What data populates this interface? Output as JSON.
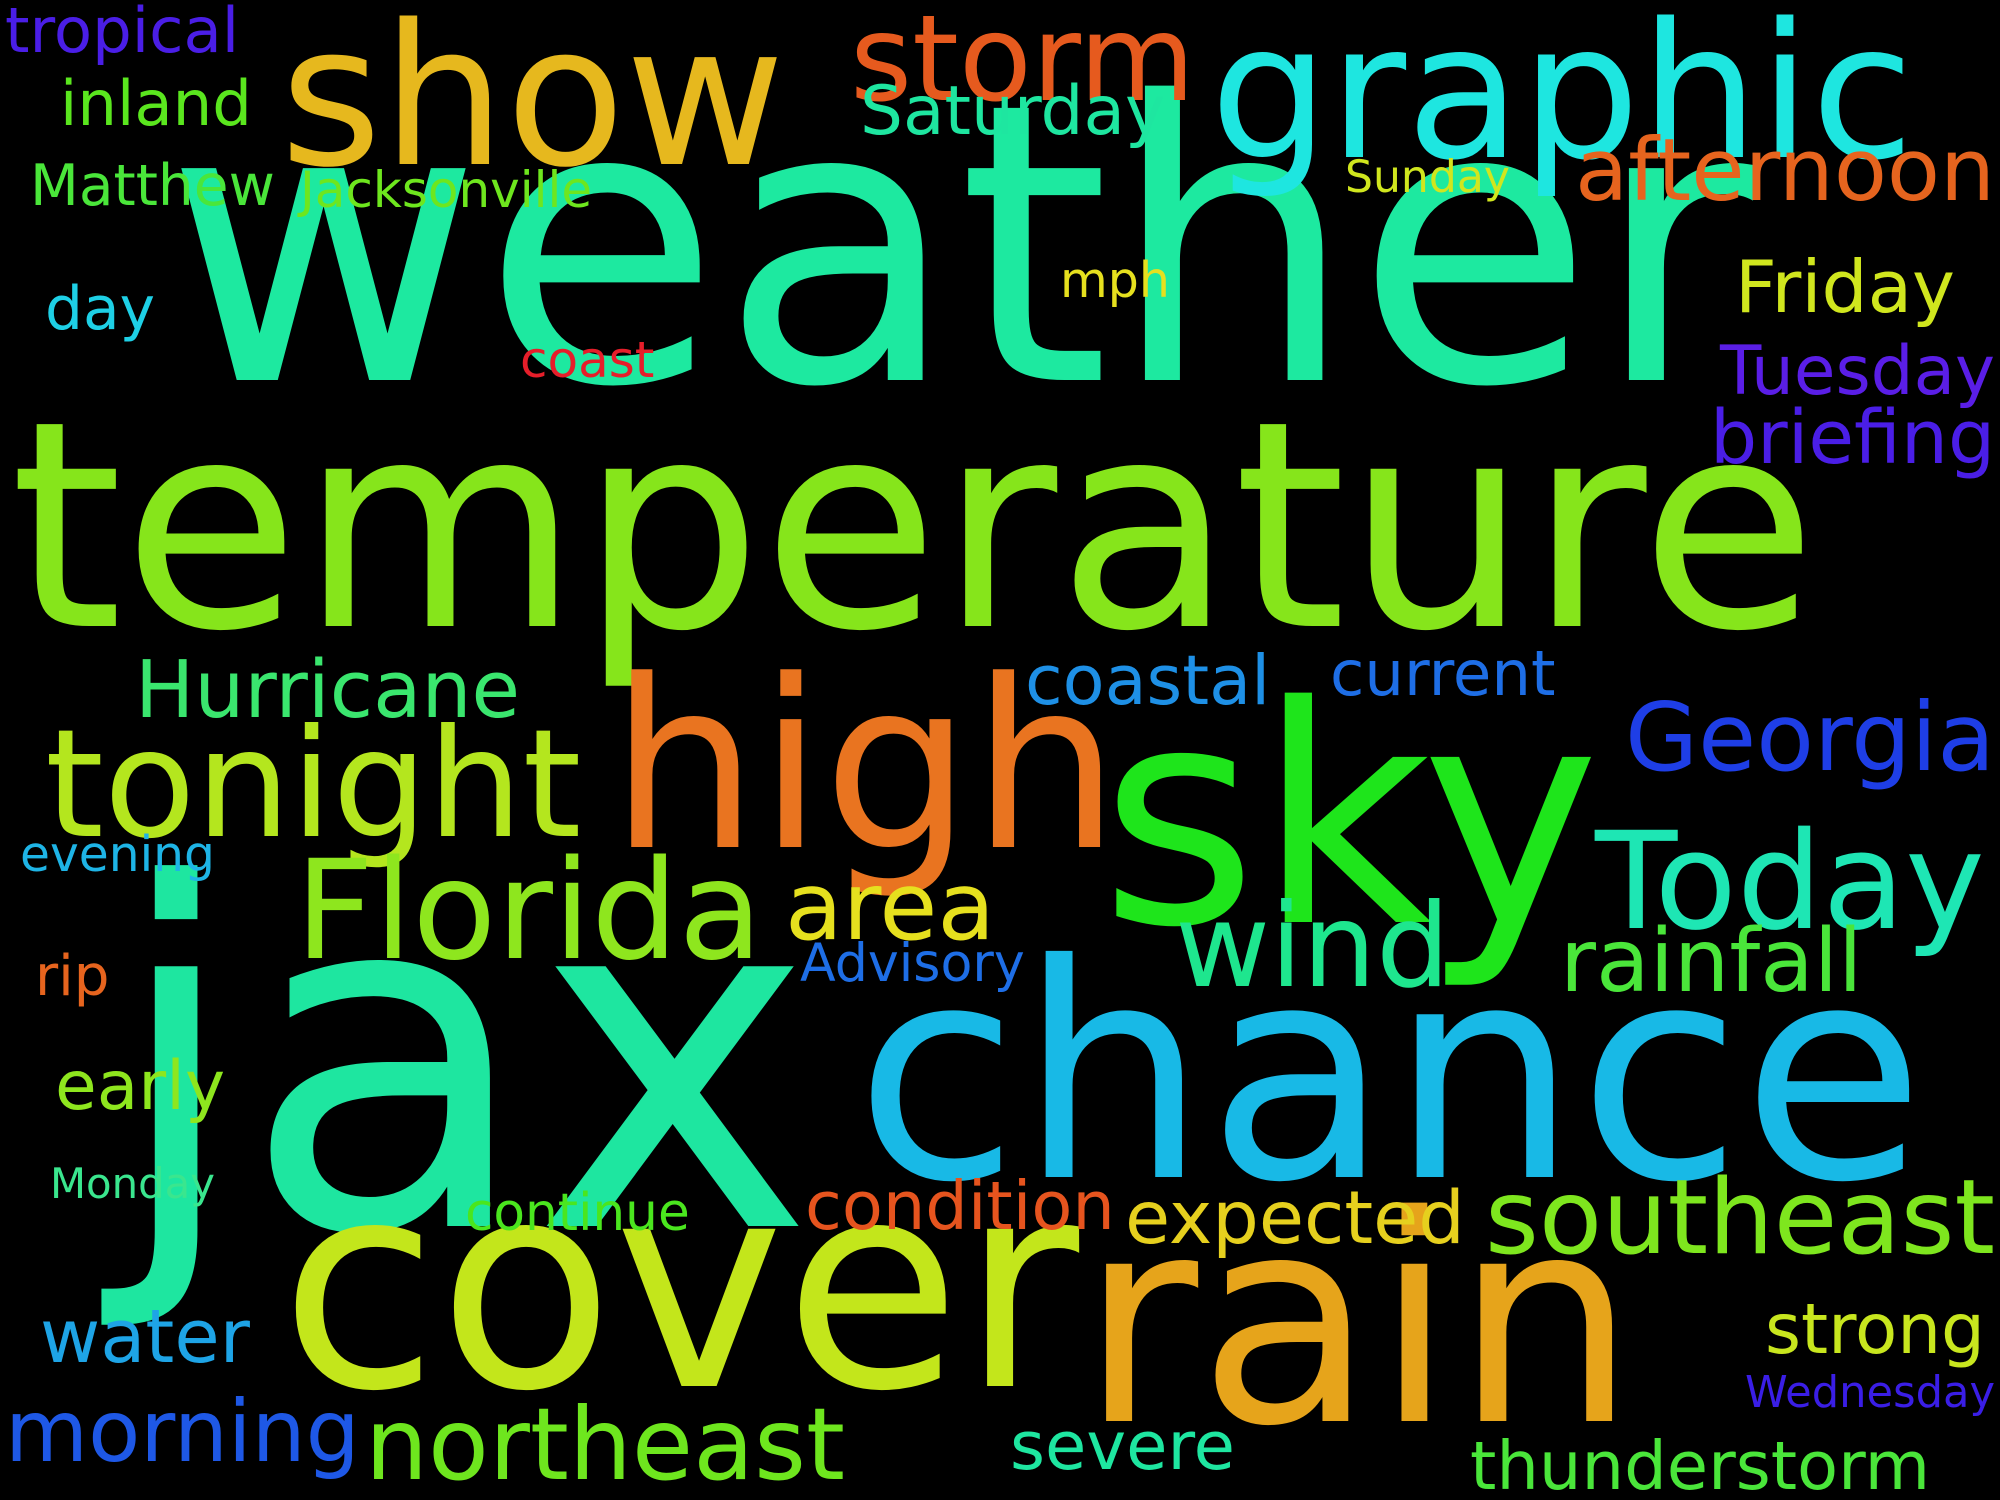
{
  "background": "#000000",
  "words": [
    {
      "text": "weather",
      "color": "#1de9a0"
    },
    {
      "text": "temperature",
      "color": "#86e51b"
    },
    {
      "text": "jax",
      "color": "#1ee6a0"
    },
    {
      "text": "sky",
      "color": "#1ee51b"
    },
    {
      "text": "high",
      "color": "#e97420"
    },
    {
      "text": "chance",
      "color": "#18b9e6"
    },
    {
      "text": "cover",
      "color": "#c3e61b"
    },
    {
      "text": "rain",
      "color": "#e6a41b"
    },
    {
      "text": "show",
      "color": "#e6b81e"
    },
    {
      "text": "graphic",
      "color": "#1ee6e0"
    },
    {
      "text": "storm",
      "color": "#e65a1e"
    },
    {
      "text": "Saturday",
      "color": "#1ee6a0"
    },
    {
      "text": "tropical",
      "color": "#4a1ee6"
    },
    {
      "text": "inland",
      "color": "#5ae61e"
    },
    {
      "text": "Matthew",
      "color": "#4ae63a"
    },
    {
      "text": "Jacksonville",
      "color": "#6ee61e"
    },
    {
      "text": "Sunday",
      "color": "#d0e61e"
    },
    {
      "text": "afternoon",
      "color": "#e6641e"
    },
    {
      "text": "day",
      "color": "#1ed0e6"
    },
    {
      "text": "mph",
      "color": "#e6e01e"
    },
    {
      "text": "Friday",
      "color": "#d0e61e"
    },
    {
      "text": "coast",
      "color": "#e61e2a"
    },
    {
      "text": "Tuesday",
      "color": "#5a1ee6"
    },
    {
      "text": "briefing",
      "color": "#4a1ee6"
    },
    {
      "text": "Hurricane",
      "color": "#3ae66e"
    },
    {
      "text": "coastal",
      "color": "#1e90e6"
    },
    {
      "text": "current",
      "color": "#1e6ee6"
    },
    {
      "text": "tonight",
      "color": "#b4e61e"
    },
    {
      "text": "Georgia",
      "color": "#1e3ee6"
    },
    {
      "text": "Today",
      "color": "#1ee6b4"
    },
    {
      "text": "evening",
      "color": "#1eb4e6"
    },
    {
      "text": "Florida",
      "color": "#8ee61e"
    },
    {
      "text": "area",
      "color": "#e6e01e"
    },
    {
      "text": "wind",
      "color": "#1ee68e"
    },
    {
      "text": "rainfall",
      "color": "#4ae63a"
    },
    {
      "text": "Advisory",
      "color": "#1e6ee6"
    },
    {
      "text": "rip",
      "color": "#e6641e"
    },
    {
      "text": "early",
      "color": "#8ee61e"
    },
    {
      "text": "Monday",
      "color": "#3ae68e"
    },
    {
      "text": "continue",
      "color": "#4ae61e"
    },
    {
      "text": "condition",
      "color": "#e6541e"
    },
    {
      "text": "expected",
      "color": "#e6d01e"
    },
    {
      "text": "southeast",
      "color": "#7ee61e"
    },
    {
      "text": "water",
      "color": "#1ea4e6"
    },
    {
      "text": "strong",
      "color": "#c8e61e"
    },
    {
      "text": "Wednesday",
      "color": "#3a1ee6"
    },
    {
      "text": "morning",
      "color": "#1e58e6"
    },
    {
      "text": "northeast",
      "color": "#6ee61e"
    },
    {
      "text": "severe",
      "color": "#1ee6a0"
    },
    {
      "text": "thunderstorm",
      "color": "#4ae63a"
    }
  ]
}
